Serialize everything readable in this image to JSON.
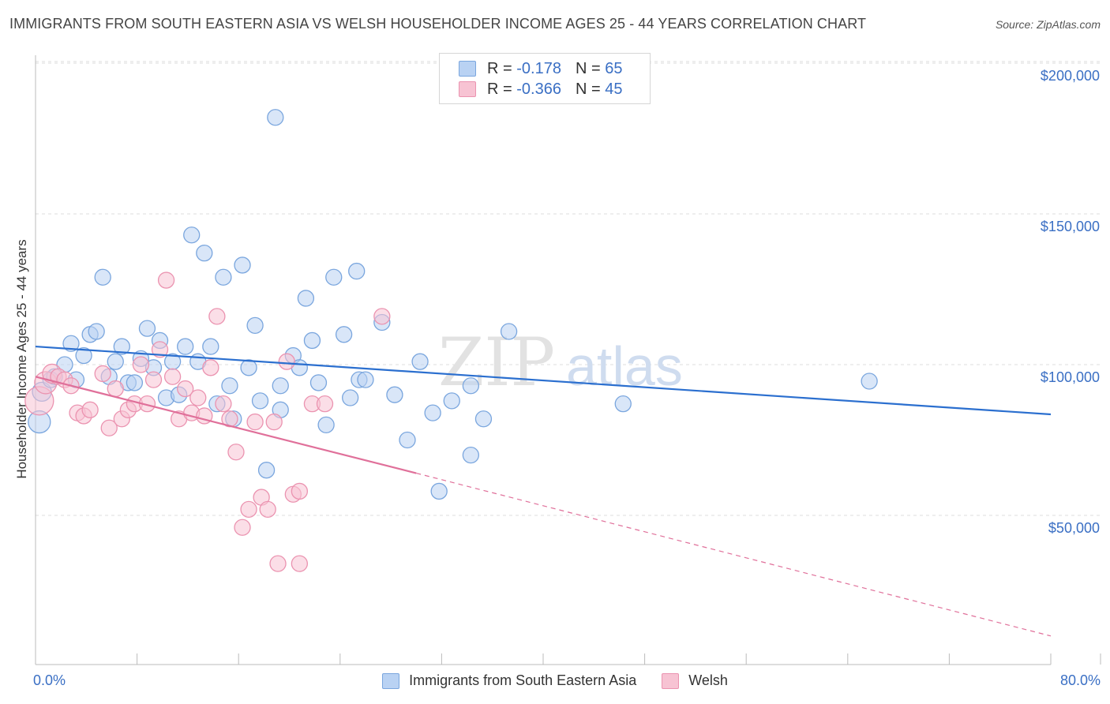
{
  "title": "IMMIGRANTS FROM SOUTH EASTERN ASIA VS WELSH HOUSEHOLDER INCOME AGES 25 - 44 YEARS CORRELATION CHART",
  "source": "Source: ZipAtlas.com",
  "watermark": {
    "zip": "ZIP",
    "atlas": "atlas"
  },
  "legend_top": {
    "rows": [
      {
        "r_label": "R =",
        "r_value": "-0.178",
        "n_label": "N =",
        "n_value": "65"
      },
      {
        "r_label": "R =",
        "r_value": "-0.366",
        "n_label": "N =",
        "n_value": "45"
      }
    ]
  },
  "legend_bottom": [
    "Immigrants from South Eastern Asia",
    "Welsh"
  ],
  "axis": {
    "ylabel": "Householder Income Ages 25 - 44 years",
    "y_ticks": [
      "$200,000",
      "$150,000",
      "$100,000",
      "$50,000"
    ],
    "x_min_label": "0.0%",
    "x_max_label": "80.0%"
  },
  "colors": {
    "blue_fill": "#b9d2f3",
    "blue_stroke": "#7aa6de",
    "blue_line": "#2b6fcf",
    "pink_fill": "#f7c3d3",
    "pink_stroke": "#eb93b0",
    "pink_line": "#e0709a",
    "tick_text": "#3a6fc4",
    "grid": "#dddddd"
  },
  "chart_data": {
    "type": "scatter",
    "xlim": [
      0,
      80
    ],
    "ylim": [
      0,
      210000
    ],
    "y_ticks": [
      50000,
      100000,
      150000,
      200000
    ],
    "grid": true,
    "legend_position": "top-center",
    "series": [
      {
        "name": "Immigrants from South Eastern Asia",
        "r": -0.178,
        "n": 65,
        "trend": {
          "x0": 0,
          "y0": 106000,
          "x1": 80,
          "y1": 83500
        },
        "points": [
          [
            0.3,
            81000,
            14
          ],
          [
            0.5,
            91000,
            12
          ],
          [
            1.2,
            95000,
            10
          ],
          [
            1.5,
            96000,
            10
          ],
          [
            2.3,
            100000,
            10
          ],
          [
            2.8,
            107000,
            10
          ],
          [
            3.2,
            95000,
            10
          ],
          [
            3.8,
            103000,
            10
          ],
          [
            4.3,
            110000,
            10
          ],
          [
            4.8,
            111000,
            10
          ],
          [
            5.3,
            129000,
            10
          ],
          [
            5.8,
            96000,
            10
          ],
          [
            6.3,
            101000,
            10
          ],
          [
            6.8,
            106000,
            10
          ],
          [
            7.3,
            94000,
            10
          ],
          [
            7.8,
            94000,
            10
          ],
          [
            8.3,
            102000,
            10
          ],
          [
            8.8,
            112000,
            10
          ],
          [
            9.3,
            99000,
            10
          ],
          [
            9.8,
            108000,
            10
          ],
          [
            10.3,
            89000,
            10
          ],
          [
            10.8,
            101000,
            10
          ],
          [
            11.3,
            90000,
            10
          ],
          [
            11.8,
            106000,
            10
          ],
          [
            12.3,
            143000,
            10
          ],
          [
            12.8,
            101000,
            10
          ],
          [
            13.3,
            137000,
            10
          ],
          [
            13.8,
            106000,
            10
          ],
          [
            14.3,
            87000,
            10
          ],
          [
            14.8,
            129000,
            10
          ],
          [
            15.3,
            93000,
            10
          ],
          [
            15.6,
            82000,
            10
          ],
          [
            16.3,
            133000,
            10
          ],
          [
            16.8,
            99000,
            10
          ],
          [
            17.3,
            113000,
            10
          ],
          [
            17.7,
            88000,
            10
          ],
          [
            18.2,
            65000,
            10
          ],
          [
            18.9,
            182000,
            10
          ],
          [
            19.3,
            93000,
            10
          ],
          [
            19.3,
            85000,
            10
          ],
          [
            20.3,
            103000,
            10
          ],
          [
            20.8,
            99000,
            10
          ],
          [
            21.3,
            122000,
            10
          ],
          [
            21.8,
            108000,
            10
          ],
          [
            22.3,
            94000,
            10
          ],
          [
            22.9,
            80000,
            10
          ],
          [
            23.5,
            129000,
            10
          ],
          [
            24.3,
            110000,
            10
          ],
          [
            24.8,
            89000,
            10
          ],
          [
            25.5,
            95000,
            10
          ],
          [
            25.3,
            131000,
            10
          ],
          [
            27.3,
            114000,
            10
          ],
          [
            28.3,
            90000,
            10
          ],
          [
            29.3,
            75000,
            10
          ],
          [
            30.3,
            101000,
            10
          ],
          [
            31.3,
            84000,
            10
          ],
          [
            31.8,
            58000,
            10
          ],
          [
            32.8,
            88000,
            10
          ],
          [
            34.3,
            93000,
            10
          ],
          [
            34.3,
            70000,
            10
          ],
          [
            35.3,
            82000,
            10
          ],
          [
            37.3,
            111000,
            10
          ],
          [
            46.3,
            87000,
            10
          ],
          [
            65.7,
            94500,
            10
          ],
          [
            26.0,
            95000,
            10
          ]
        ]
      },
      {
        "name": "Welsh",
        "r": -0.366,
        "n": 45,
        "trend": {
          "x0": 0,
          "y0": 96000,
          "x1": 30,
          "y1": 64000,
          "dash_to_x": 80,
          "dash_to_y": 10000
        },
        "points": [
          [
            0.3,
            88000,
            18
          ],
          [
            0.8,
            94000,
            14
          ],
          [
            1.3,
            97000,
            12
          ],
          [
            1.8,
            96000,
            10
          ],
          [
            2.3,
            95000,
            10
          ],
          [
            2.8,
            93000,
            10
          ],
          [
            3.3,
            84000,
            10
          ],
          [
            3.8,
            83000,
            10
          ],
          [
            4.3,
            85000,
            10
          ],
          [
            5.3,
            97000,
            10
          ],
          [
            5.8,
            79000,
            10
          ],
          [
            6.3,
            92000,
            10
          ],
          [
            6.8,
            82000,
            10
          ],
          [
            7.3,
            85000,
            10
          ],
          [
            7.8,
            87000,
            10
          ],
          [
            8.3,
            100000,
            10
          ],
          [
            8.8,
            87000,
            10
          ],
          [
            9.3,
            95000,
            10
          ],
          [
            9.8,
            105000,
            10
          ],
          [
            10.3,
            128000,
            10
          ],
          [
            10.8,
            96000,
            10
          ],
          [
            11.3,
            82000,
            10
          ],
          [
            11.8,
            92000,
            10
          ],
          [
            12.3,
            84000,
            10
          ],
          [
            12.8,
            89000,
            10
          ],
          [
            13.3,
            83000,
            10
          ],
          [
            13.8,
            99000,
            10
          ],
          [
            14.3,
            116000,
            10
          ],
          [
            14.8,
            87000,
            10
          ],
          [
            15.3,
            82000,
            10
          ],
          [
            15.8,
            71000,
            10
          ],
          [
            16.3,
            46000,
            10
          ],
          [
            16.8,
            52000,
            10
          ],
          [
            17.3,
            81000,
            10
          ],
          [
            17.8,
            56000,
            10
          ],
          [
            18.3,
            52000,
            10
          ],
          [
            18.8,
            81000,
            10
          ],
          [
            19.1,
            34000,
            10
          ],
          [
            19.8,
            101000,
            10
          ],
          [
            20.3,
            57000,
            10
          ],
          [
            20.8,
            34000,
            10
          ],
          [
            20.8,
            58000,
            10
          ],
          [
            21.8,
            87000,
            10
          ],
          [
            22.8,
            87000,
            10
          ],
          [
            27.3,
            116000,
            10
          ]
        ]
      }
    ]
  }
}
